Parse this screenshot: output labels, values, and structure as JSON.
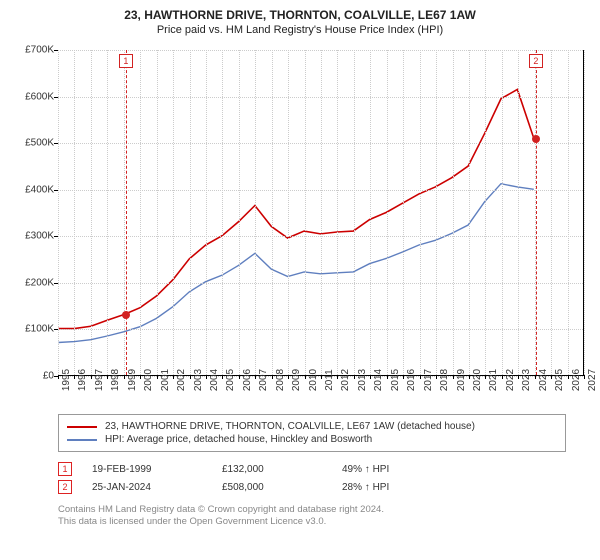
{
  "title": "23, HAWTHORNE DRIVE, THORNTON, COALVILLE, LE67 1AW",
  "subtitle": "Price paid vs. HM Land Registry's House Price Index (HPI)",
  "chart": {
    "type": "line",
    "background_color": "#ffffff",
    "grid_color": "#cccccc",
    "axis_color": "#000000",
    "label_fontsize": 10,
    "xlim": [
      1995,
      2027
    ],
    "ylim": [
      0,
      700000
    ],
    "ytick_step": 100000,
    "yticks": [
      "£0",
      "£100K",
      "£200K",
      "£300K",
      "£400K",
      "£500K",
      "£600K",
      "£700K"
    ],
    "xticks": [
      1995,
      1996,
      1997,
      1998,
      1999,
      2000,
      2001,
      2002,
      2003,
      2004,
      2005,
      2006,
      2007,
      2008,
      2009,
      2010,
      2011,
      2012,
      2013,
      2014,
      2015,
      2016,
      2017,
      2018,
      2019,
      2020,
      2021,
      2022,
      2023,
      2024,
      2025,
      2026,
      2027
    ],
    "series": [
      {
        "name": "price_paid",
        "color": "#cc0000",
        "line_width": 1.6,
        "years": [
          1995,
          1996,
          1997,
          1998,
          1999,
          2000,
          2001,
          2002,
          2003,
          2004,
          2005,
          2006,
          2007,
          2008,
          2009,
          2010,
          2011,
          2012,
          2013,
          2014,
          2015,
          2016,
          2017,
          2018,
          2019,
          2020,
          2021,
          2022,
          2023,
          2024
        ],
        "values": [
          100000,
          100000,
          105000,
          118000,
          130000,
          145000,
          170000,
          205000,
          250000,
          280000,
          300000,
          330000,
          365000,
          320000,
          295000,
          310000,
          304000,
          308000,
          310000,
          335000,
          350000,
          370000,
          390000,
          405000,
          425000,
          450000,
          520000,
          595000,
          615000,
          510000
        ]
      },
      {
        "name": "hpi",
        "color": "#5f7fbf",
        "line_width": 1.4,
        "years": [
          1995,
          1996,
          1997,
          1998,
          1999,
          2000,
          2001,
          2002,
          2003,
          2004,
          2005,
          2006,
          2007,
          2008,
          2009,
          2010,
          2011,
          2012,
          2013,
          2014,
          2015,
          2016,
          2017,
          2018,
          2019,
          2020,
          2021,
          2022,
          2023,
          2024
        ],
        "values": [
          70000,
          72000,
          76000,
          84000,
          93000,
          104000,
          122000,
          147000,
          179000,
          201000,
          215000,
          236000,
          262000,
          228000,
          212000,
          222000,
          218000,
          220000,
          222000,
          240000,
          251000,
          265000,
          280000,
          290000,
          305000,
          323000,
          373000,
          412000,
          405000,
          400000
        ]
      }
    ],
    "marker_lines": [
      {
        "id": "1",
        "year": 1999.13,
        "color": "#d22222"
      },
      {
        "id": "2",
        "year": 2024.07,
        "color": "#d22222"
      }
    ],
    "marker_points": [
      {
        "year": 1999.13,
        "value": 132000,
        "color": "#d22222",
        "radius": 4
      },
      {
        "year": 2024.07,
        "value": 508000,
        "color": "#d22222",
        "radius": 4
      }
    ]
  },
  "legend": {
    "border_color": "#999999",
    "items": [
      {
        "color": "#cc0000",
        "label": "23, HAWTHORNE DRIVE, THORNTON, COALVILLE, LE67 1AW (detached house)"
      },
      {
        "color": "#5f7fbf",
        "label": "HPI: Average price, detached house, Hinckley and Bosworth"
      }
    ]
  },
  "markers_table": [
    {
      "id": "1",
      "date": "19-FEB-1999",
      "price": "£132,000",
      "delta": "49% ↑ HPI"
    },
    {
      "id": "2",
      "date": "25-JAN-2024",
      "price": "£508,000",
      "delta": "28% ↑ HPI"
    }
  ],
  "footer": {
    "line1": "Contains HM Land Registry data © Crown copyright and database right 2024.",
    "line2": "This data is licensed under the Open Government Licence v3.0."
  }
}
